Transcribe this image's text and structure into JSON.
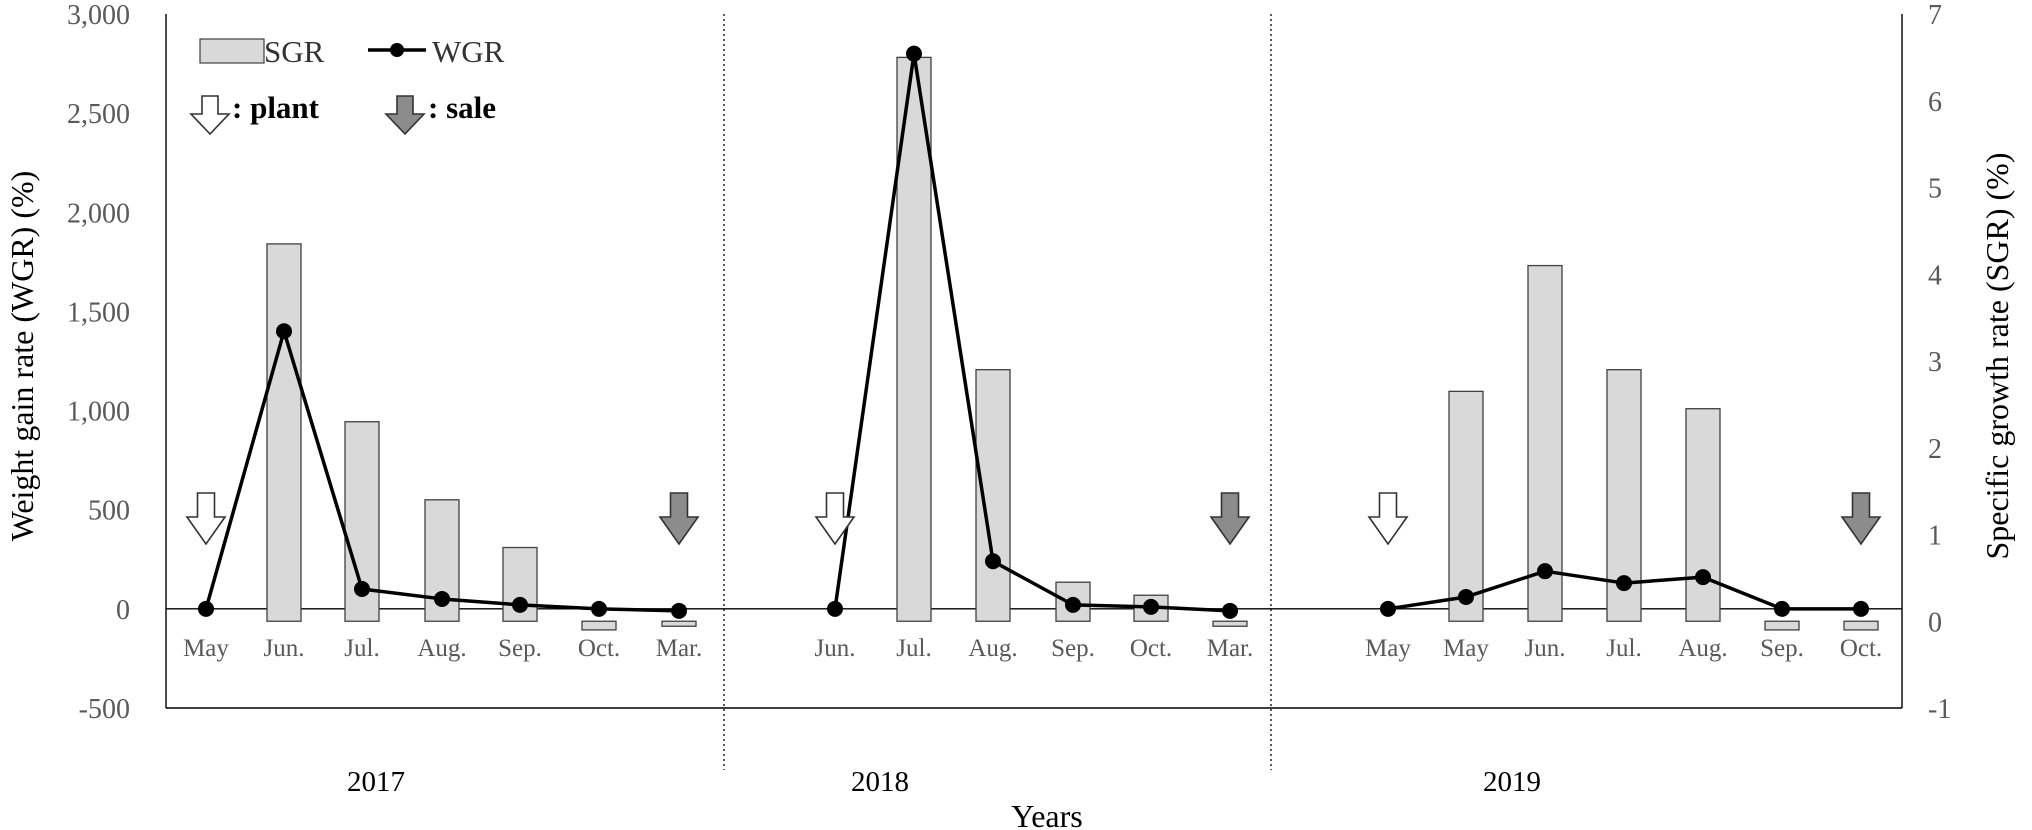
{
  "chart_data": {
    "type": "bar+line",
    "x_title": "Years",
    "y_left_title": "Weight gain rate (WGR) (%)",
    "y_right_title": "Specific growth rate (SGR) (%)",
    "y_left_range": [
      -500,
      3000
    ],
    "y_left_ticks": [
      "3,000",
      "2,500",
      "2,000",
      "1,500",
      "1,000",
      "500",
      "0",
      "-500"
    ],
    "y_right_range": [
      -1,
      7
    ],
    "y_right_ticks": [
      "7",
      "6",
      "5",
      "4",
      "3",
      "2",
      "1",
      "0",
      "-1"
    ],
    "legend": {
      "sgr_label": "SGR",
      "wgr_label": "WGR",
      "plant_label": ": plant",
      "sale_label": ": sale"
    },
    "colors": {
      "bar_fill": "#d9d9d9",
      "bar_stroke": "#404040",
      "line": "#000000",
      "plant_arrow": "#ffffff",
      "sale_arrow": "#8c8c8c"
    },
    "years": [
      "2017",
      "2018",
      "2019"
    ],
    "categories": [
      "May",
      "Jun.",
      "Jul.",
      "Aug.",
      "Sep.",
      "Oct.",
      "Mar.",
      "Jun.",
      "Jul.",
      "Aug.",
      "Sep.",
      "Oct.",
      "Mar.",
      "May",
      "May",
      "Jun.",
      "Jul.",
      "Aug.",
      "Sep.",
      "Oct."
    ],
    "series": [
      {
        "name": "SGR",
        "type": "bar",
        "axis": "right",
        "values": [
          null,
          4.35,
          2.3,
          1.4,
          0.85,
          -0.1,
          -0.02,
          null,
          6.5,
          2.9,
          0.45,
          0.3,
          -0.05,
          null,
          2.65,
          4.1,
          2.9,
          2.45,
          -0.1,
          -0.1
        ]
      },
      {
        "name": "WGR",
        "type": "line",
        "axis": "left",
        "values": [
          0,
          1400,
          100,
          50,
          20,
          0,
          -10,
          0,
          2800,
          240,
          20,
          10,
          -10,
          0,
          60,
          190,
          130,
          160,
          0,
          0
        ]
      }
    ],
    "markers": [
      {
        "type": "plant",
        "index": 0
      },
      {
        "type": "sale",
        "index": 6
      },
      {
        "type": "plant",
        "index": 7
      },
      {
        "type": "sale",
        "index": 12
      },
      {
        "type": "plant",
        "index": 13
      },
      {
        "type": "sale",
        "index": 19
      }
    ],
    "year_dividers_after_index": [
      6,
      12
    ],
    "grid": false
  }
}
